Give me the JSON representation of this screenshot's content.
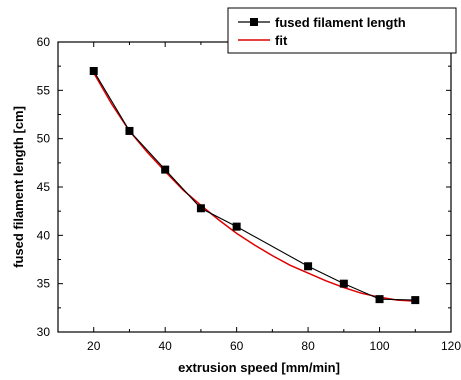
{
  "chart_data": {
    "type": "line",
    "title": "",
    "xlabel": "extrusion speed [mm/min]",
    "ylabel": "fused filament length [cm]",
    "xlim": [
      10,
      120
    ],
    "ylim": [
      30,
      60
    ],
    "x_ticks": [
      20,
      40,
      60,
      80,
      100,
      120
    ],
    "y_ticks": [
      30,
      35,
      40,
      45,
      50,
      55,
      60
    ],
    "grid": false,
    "legend_position": "top-right",
    "series": [
      {
        "name": "fused filament length",
        "style": "line-square-markers",
        "color": "#000000",
        "x": [
          20,
          30,
          40,
          50,
          60,
          80,
          90,
          100,
          110
        ],
        "y": [
          57.0,
          50.8,
          46.8,
          42.8,
          40.9,
          36.8,
          35.0,
          33.4,
          33.3
        ]
      },
      {
        "name": "fit",
        "style": "smooth-line",
        "color": "#e00000",
        "x": [
          20,
          25,
          30,
          35,
          40,
          45,
          50,
          55,
          60,
          65,
          70,
          75,
          80,
          85,
          90,
          95,
          100,
          105,
          110
        ],
        "y": [
          56.8,
          53.6,
          50.8,
          48.6,
          46.6,
          44.7,
          43.1,
          41.6,
          40.2,
          39.0,
          37.9,
          36.9,
          36.1,
          35.3,
          34.6,
          34.0,
          33.6,
          33.3,
          33.2
        ]
      }
    ]
  }
}
